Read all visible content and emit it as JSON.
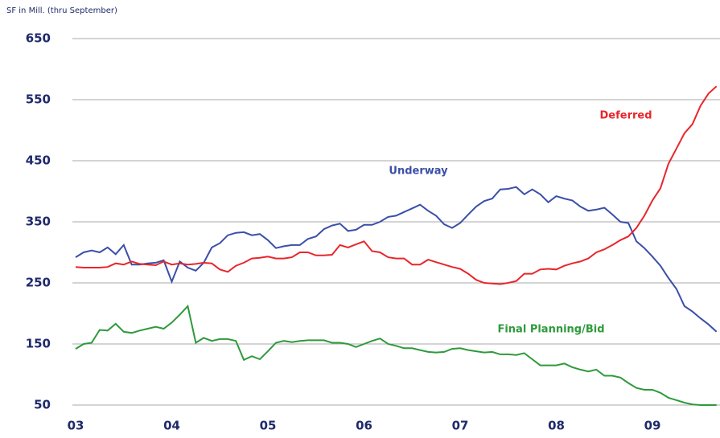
{
  "chart_data": {
    "type": "line",
    "y_label": "SF in Mill. (thru September)",
    "categories": [
      "03",
      null,
      null,
      null,
      null,
      null,
      null,
      null,
      null,
      null,
      null,
      null,
      "04",
      null,
      null,
      null,
      null,
      null,
      null,
      null,
      null,
      null,
      null,
      null,
      "05",
      null,
      null,
      null,
      null,
      null,
      null,
      null,
      null,
      null,
      null,
      null,
      "06",
      null,
      null,
      null,
      null,
      null,
      null,
      null,
      null,
      null,
      null,
      null,
      "07",
      null,
      null,
      null,
      null,
      null,
      null,
      null,
      null,
      null,
      null,
      null,
      "08",
      null,
      null,
      null,
      null,
      null,
      null,
      null,
      null,
      null,
      null,
      null,
      "09",
      null,
      null,
      null,
      null,
      null,
      null,
      null,
      null
    ],
    "series": [
      {
        "name": "Underway",
        "color": "#3a4fa8",
        "values": [
          292,
          300,
          303,
          300,
          308,
          297,
          312,
          280,
          280,
          282,
          283,
          287,
          252,
          285,
          275,
          270,
          283,
          308,
          315,
          328,
          332,
          333,
          328,
          330,
          320,
          307,
          310,
          312,
          312,
          322,
          326,
          338,
          344,
          347,
          335,
          337,
          345,
          345,
          350,
          358,
          360,
          366,
          372,
          378,
          368,
          360,
          346,
          340,
          348,
          362,
          375,
          384,
          388,
          403,
          404,
          407,
          395,
          403,
          395,
          382,
          392,
          388,
          385,
          375,
          368,
          370,
          373,
          362,
          350,
          348,
          318,
          307,
          293,
          278,
          258,
          240,
          212,
          203,
          192,
          182,
          170
        ]
      },
      {
        "name": "Deferred",
        "color": "#e8262b",
        "values": [
          276,
          275,
          275,
          275,
          276,
          282,
          280,
          285,
          281,
          280,
          279,
          285,
          280,
          282,
          280,
          281,
          283,
          282,
          272,
          268,
          278,
          283,
          290,
          291,
          293,
          290,
          290,
          292,
          300,
          300,
          295,
          295,
          296,
          312,
          308,
          313,
          318,
          302,
          300,
          292,
          290,
          290,
          280,
          280,
          288,
          284,
          280,
          276,
          273,
          265,
          255,
          250,
          249,
          248,
          250,
          253,
          265,
          265,
          272,
          273,
          272,
          278,
          282,
          285,
          290,
          300,
          305,
          312,
          320,
          326,
          340,
          360,
          385,
          405,
          445,
          470,
          495,
          510,
          540,
          560,
          572
        ]
      },
      {
        "name": "Final Planning/Bid",
        "color": "#2e9a3b",
        "values": [
          142,
          150,
          152,
          173,
          172,
          183,
          170,
          168,
          172,
          175,
          178,
          175,
          185,
          198,
          212,
          152,
          160,
          155,
          158,
          158,
          155,
          124,
          130,
          125,
          138,
          152,
          155,
          153,
          155,
          156,
          156,
          156,
          152,
          152,
          150,
          145,
          150,
          155,
          159,
          150,
          147,
          143,
          143,
          140,
          137,
          136,
          137,
          142,
          143,
          140,
          138,
          136,
          137,
          133,
          133,
          132,
          135,
          125,
          115,
          115,
          115,
          118,
          112,
          108,
          105,
          108,
          98,
          98,
          95,
          86,
          78,
          75,
          75,
          70,
          62,
          58,
          54,
          51,
          50,
          50,
          50
        ]
      }
    ],
    "ylim": [
      50,
      650
    ],
    "yticks": [
      50,
      150,
      250,
      350,
      450,
      550,
      650
    ],
    "grid": true
  }
}
